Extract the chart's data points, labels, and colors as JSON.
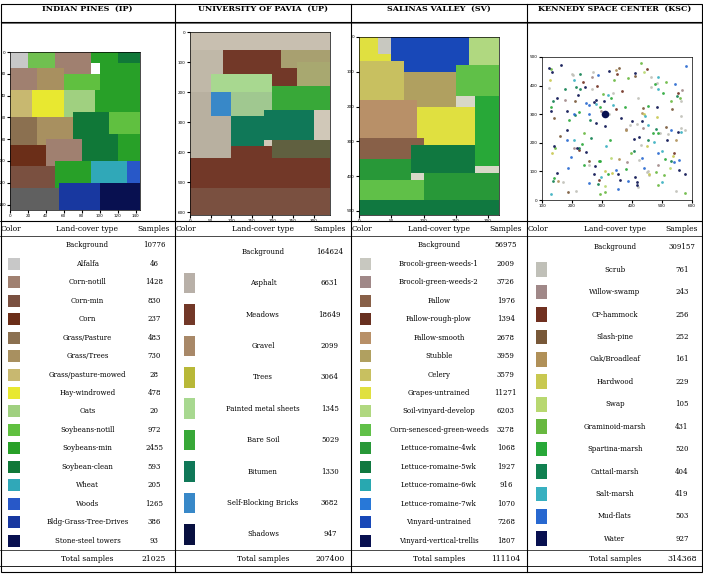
{
  "datasets": [
    {
      "title": "INDIAN PINES  (IP)",
      "classes": [
        {
          "name": "Background",
          "samples": "10776",
          "color": null
        },
        {
          "name": "Alfalfa",
          "samples": "46",
          "color": "#c8c8c8"
        },
        {
          "name": "Corn-notill",
          "samples": "1428",
          "color": "#a08070"
        },
        {
          "name": "Corn-min",
          "samples": "830",
          "color": "#7a5040"
        },
        {
          "name": "Corn",
          "samples": "237",
          "color": "#6b2e18"
        },
        {
          "name": "Grass/Pasture",
          "samples": "483",
          "color": "#8b7050"
        },
        {
          "name": "Grass/Trees",
          "samples": "730",
          "color": "#a89060"
        },
        {
          "name": "Grass/pasture-mowed",
          "samples": "28",
          "color": "#c8b870"
        },
        {
          "name": "Hay-windrowed",
          "samples": "478",
          "color": "#e8e830"
        },
        {
          "name": "Oats",
          "samples": "20",
          "color": "#a0d080"
        },
        {
          "name": "Soybeans-notill",
          "samples": "972",
          "color": "#60c040"
        },
        {
          "name": "Soybeans-min",
          "samples": "2455",
          "color": "#28a028"
        },
        {
          "name": "Soybean-clean",
          "samples": "593",
          "color": "#107838"
        },
        {
          "name": "Wheat",
          "samples": "205",
          "color": "#30a8b8"
        },
        {
          "name": "Woods",
          "samples": "1265",
          "color": "#2858c8"
        },
        {
          "name": "Bldg-Grass-Tree-Drives",
          "samples": "386",
          "color": "#1838a0"
        },
        {
          "name": "Stone-steel towers",
          "samples": "93",
          "color": "#081050"
        }
      ],
      "total": "21025"
    },
    {
      "title": "UNIVERSITY OF PAVIA  (UP)",
      "classes": [
        {
          "name": "Background",
          "samples": "164624",
          "color": null
        },
        {
          "name": "Asphalt",
          "samples": "6631",
          "color": "#b8b0a8"
        },
        {
          "name": "Meadows",
          "samples": "18649",
          "color": "#723828"
        },
        {
          "name": "Gravel",
          "samples": "2099",
          "color": "#a88868"
        },
        {
          "name": "Trees",
          "samples": "3064",
          "color": "#b8b838"
        },
        {
          "name": "Painted metal sheets",
          "samples": "1345",
          "color": "#a8d890"
        },
        {
          "name": "Bare Soil",
          "samples": "5029",
          "color": "#38a838"
        },
        {
          "name": "Bitumen",
          "samples": "1330",
          "color": "#107858"
        },
        {
          "name": "Self-Blocking Bricks",
          "samples": "3682",
          "color": "#3888c8"
        },
        {
          "name": "Shadows",
          "samples": "947",
          "color": "#081040"
        }
      ],
      "total": "207400"
    },
    {
      "title": "SALINAS VALLEY  (SV)",
      "classes": [
        {
          "name": "Background",
          "samples": "56975",
          "color": null
        },
        {
          "name": "Brocoli-green-weeds-1",
          "samples": "2009",
          "color": "#c8c8c0"
        },
        {
          "name": "Brocoli-green-weeds-2",
          "samples": "3726",
          "color": "#a08888"
        },
        {
          "name": "Fallow",
          "samples": "1976",
          "color": "#886048"
        },
        {
          "name": "Fallow-rough-plow",
          "samples": "1394",
          "color": "#683020"
        },
        {
          "name": "Fallow-smooth",
          "samples": "2678",
          "color": "#b89068"
        },
        {
          "name": "Stubble",
          "samples": "3959",
          "color": "#b0a060"
        },
        {
          "name": "Celery",
          "samples": "3579",
          "color": "#c8c060"
        },
        {
          "name": "Grapes-untrained",
          "samples": "11271",
          "color": "#e0e040"
        },
        {
          "name": "Soil-vinyard-develop",
          "samples": "6203",
          "color": "#b0d880"
        },
        {
          "name": "Corn-senesced-green-weeds",
          "samples": "3278",
          "color": "#60c048"
        },
        {
          "name": "Lettuce-romaine-4wk",
          "samples": "1068",
          "color": "#289838"
        },
        {
          "name": "Lettuce-romaine-5wk",
          "samples": "1927",
          "color": "#107840"
        },
        {
          "name": "Lettuce-romaine-6wk",
          "samples": "916",
          "color": "#28a8b0"
        },
        {
          "name": "Lettuce-romaine-7wk",
          "samples": "1070",
          "color": "#2878d8"
        },
        {
          "name": "Vinyard-untrained",
          "samples": "7268",
          "color": "#1848b8"
        },
        {
          "name": "Vinyard-vertical-trellis",
          "samples": "1807",
          "color": "#081050"
        }
      ],
      "total": "111104"
    },
    {
      "title": "KENNEDY SPACE CENTER  (KSC)",
      "classes": [
        {
          "name": "Background",
          "samples": "309157",
          "color": null
        },
        {
          "name": "Scrub",
          "samples": "761",
          "color": "#c0c0b8"
        },
        {
          "name": "Willow-swamp",
          "samples": "243",
          "color": "#a08888"
        },
        {
          "name": "CP-hammock",
          "samples": "256",
          "color": "#703020"
        },
        {
          "name": "Slash-pine",
          "samples": "252",
          "color": "#785838"
        },
        {
          "name": "Oak/Broadleaf",
          "samples": "161",
          "color": "#b09058"
        },
        {
          "name": "Hardwood",
          "samples": "229",
          "color": "#c8c850"
        },
        {
          "name": "Swap",
          "samples": "105",
          "color": "#b8d870"
        },
        {
          "name": "Graminoid-marsh",
          "samples": "431",
          "color": "#68b840"
        },
        {
          "name": "Spartina-marsh",
          "samples": "520",
          "color": "#28a838"
        },
        {
          "name": "Cattail-marsh",
          "samples": "404",
          "color": "#108050"
        },
        {
          "name": "Salt-marsh",
          "samples": "419",
          "color": "#38b0c0"
        },
        {
          "name": "Mud-flats",
          "samples": "503",
          "color": "#2868d0"
        },
        {
          "name": "Water",
          "samples": "927",
          "color": "#081050"
        }
      ],
      "total": "314368"
    }
  ]
}
